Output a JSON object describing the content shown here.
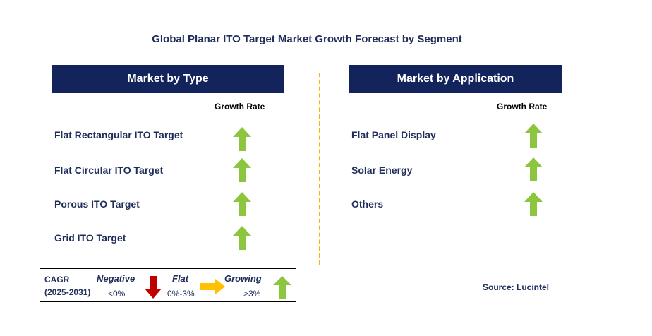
{
  "title": "Global Planar ITO Target Market Growth Forecast by Segment",
  "left_panel": {
    "header": "Market by Type",
    "growth_label": "Growth Rate",
    "items": [
      {
        "label": "Flat Rectangular ITO Target",
        "trend": "growing"
      },
      {
        "label": "Flat Circular ITO Target",
        "trend": "growing"
      },
      {
        "label": "Porous ITO Target",
        "trend": "growing"
      },
      {
        "label": "Grid ITO Target",
        "trend": "growing"
      }
    ]
  },
  "right_panel": {
    "header": "Market by Application",
    "growth_label": "Growth Rate",
    "items": [
      {
        "label": "Flat Panel Display",
        "trend": "growing"
      },
      {
        "label": "Solar Energy",
        "trend": "growing"
      },
      {
        "label": "Others",
        "trend": "growing"
      }
    ]
  },
  "legend": {
    "cagr_label": "CAGR",
    "period": "(2025-2031)",
    "negative_label": "Negative",
    "negative_range": "<0%",
    "flat_label": "Flat",
    "flat_range": "0%-3%",
    "growing_label": "Growing",
    "growing_range": ">3%"
  },
  "source": "Source: Lucintel",
  "colors": {
    "header_bg": "#13235b",
    "text": "#1f2d5a",
    "growing_arrow": "#8cc63f",
    "negative_arrow": "#c00000",
    "flat_arrow": "#ffc000",
    "divider": "#f5b400"
  },
  "icons": {
    "growing": "up-arrow-icon",
    "negative": "down-arrow-icon",
    "flat": "right-arrow-icon"
  }
}
